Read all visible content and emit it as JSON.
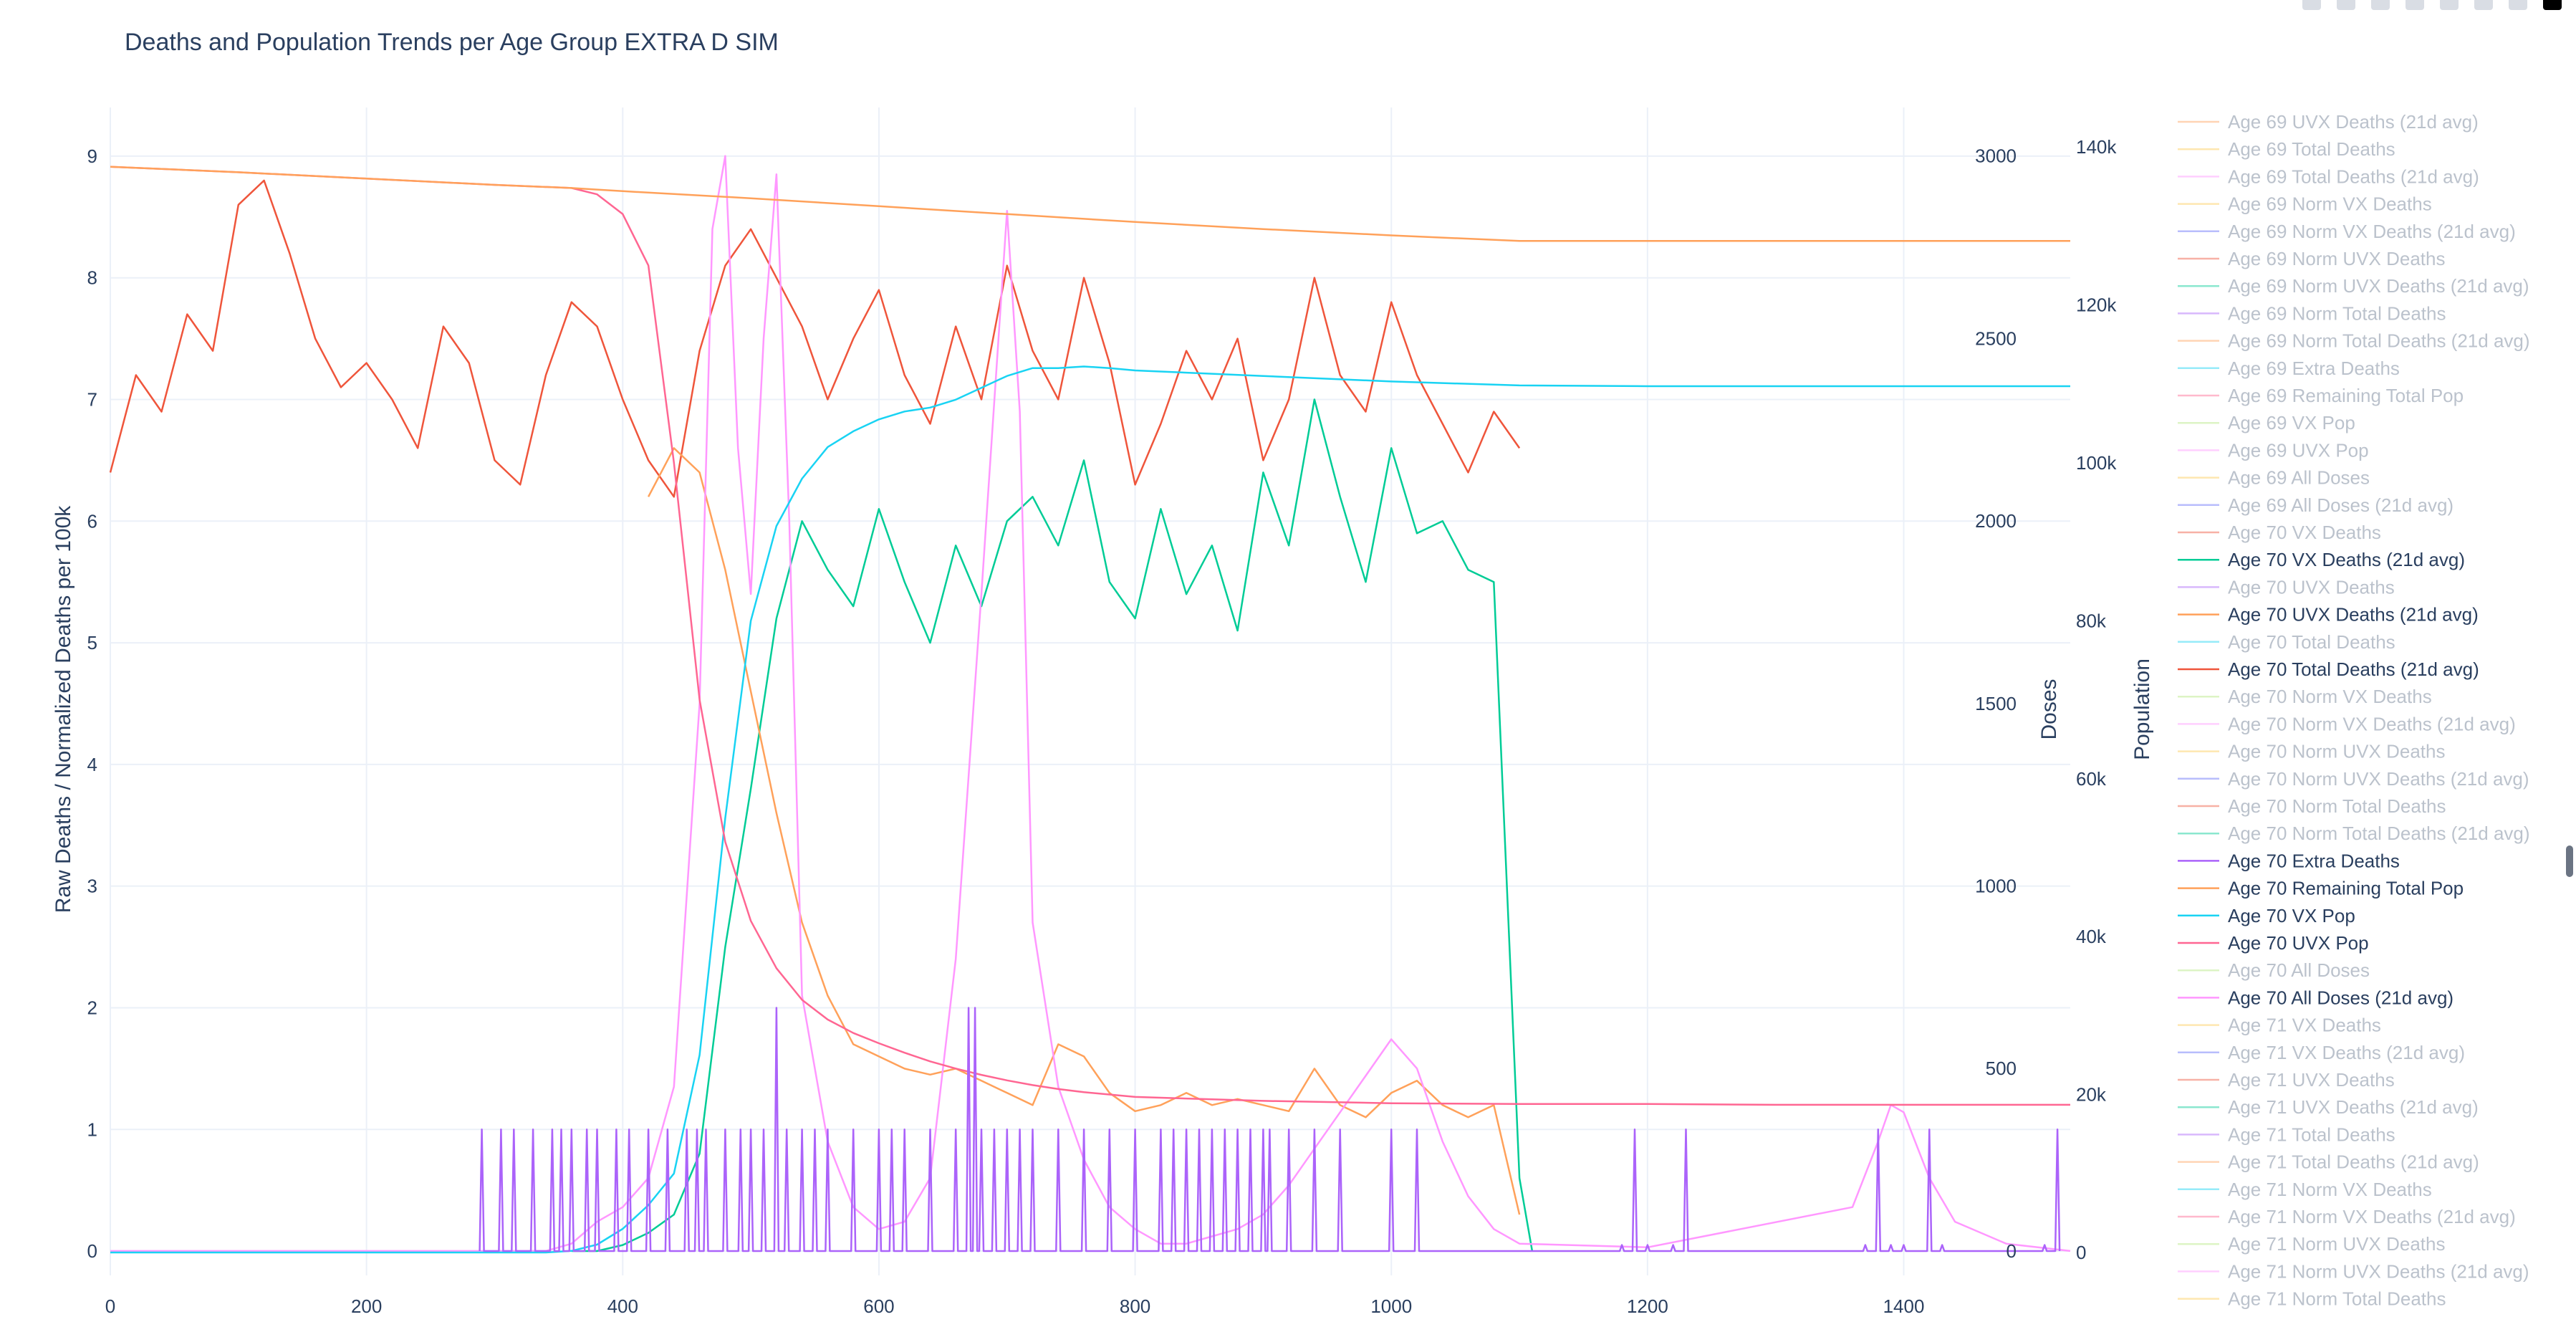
{
  "chart_data": {
    "type": "line",
    "title": "Deaths and Population Trends per Age Group  EXTRA D SIM",
    "xlim": [
      0,
      1530
    ],
    "x_ticks": [
      0,
      200,
      400,
      600,
      800,
      1000,
      1200,
      1400
    ],
    "axes": {
      "y": {
        "label": "Raw Deaths / Normalized Deaths per 100k",
        "range": [
          -0.2,
          9.4
        ],
        "ticks": [
          0,
          1,
          2,
          3,
          4,
          5,
          6,
          7,
          8,
          9
        ]
      },
      "y2": {
        "label": "Doses",
        "range": [
          -67,
          3133
        ],
        "ticks": [
          0,
          500,
          1000,
          1500,
          2000,
          2500,
          3000
        ]
      },
      "y3": {
        "label": "Population",
        "range": [
          -2900,
          145000
        ],
        "ticks": [
          0,
          20000,
          40000,
          60000,
          80000,
          100000,
          120000,
          140000
        ],
        "tick_labels": [
          "0",
          "20k",
          "40k",
          "60k",
          "80k",
          "100k",
          "120k",
          "140k"
        ]
      }
    },
    "grid": true,
    "legend_placement": "right",
    "series": [
      {
        "name": "Age 70 Total Deaths (21d avg)",
        "axis": "y",
        "color": "#ef553b",
        "x": [
          0,
          20,
          40,
          60,
          80,
          100,
          120,
          140,
          160,
          180,
          200,
          220,
          240,
          260,
          280,
          300,
          320,
          340,
          360,
          380,
          400,
          420,
          440,
          460,
          480,
          500,
          520,
          540,
          560,
          580,
          600,
          620,
          640,
          660,
          680,
          700,
          720,
          740,
          760,
          780,
          800,
          820,
          840,
          860,
          880,
          900,
          920,
          940,
          960,
          980,
          1000,
          1020,
          1040,
          1060,
          1080,
          1100
        ],
        "y": [
          6.4,
          7.2,
          6.9,
          7.7,
          7.4,
          8.6,
          8.8,
          8.2,
          7.5,
          7.1,
          7.3,
          7.0,
          6.6,
          7.6,
          7.3,
          6.5,
          6.3,
          7.2,
          7.8,
          7.6,
          7.0,
          6.5,
          6.2,
          7.4,
          8.1,
          8.4,
          8.0,
          7.6,
          7.0,
          7.5,
          7.9,
          7.2,
          6.8,
          7.6,
          7.0,
          8.1,
          7.4,
          7.0,
          8.0,
          7.3,
          6.3,
          6.8,
          7.4,
          7.0,
          7.5,
          6.5,
          7.0,
          8.0,
          7.2,
          6.9,
          7.8,
          7.2,
          6.8,
          6.4,
          6.9,
          6.6
        ]
      },
      {
        "name": "Age 70 VX Deaths (21d avg)",
        "axis": "y",
        "color": "#00cc96",
        "x": [
          360,
          380,
          400,
          420,
          440,
          460,
          480,
          500,
          520,
          540,
          560,
          580,
          600,
          620,
          640,
          660,
          680,
          700,
          720,
          740,
          760,
          780,
          800,
          820,
          840,
          860,
          880,
          900,
          920,
          940,
          960,
          980,
          1000,
          1020,
          1040,
          1060,
          1080,
          1100,
          1110
        ],
        "y": [
          0,
          0,
          0.05,
          0.15,
          0.3,
          0.8,
          2.5,
          3.8,
          5.2,
          6.0,
          5.6,
          5.3,
          6.1,
          5.5,
          5.0,
          5.8,
          5.3,
          6.0,
          6.2,
          5.8,
          6.5,
          5.5,
          5.2,
          6.1,
          5.4,
          5.8,
          5.1,
          6.4,
          5.8,
          7.0,
          6.2,
          5.5,
          6.6,
          5.9,
          6.0,
          5.6,
          5.5,
          0.6,
          0
        ]
      },
      {
        "name": "Age 70 UVX Deaths (21d avg)",
        "axis": "y",
        "color": "#ffa15a",
        "x": [
          420,
          440,
          460,
          480,
          500,
          520,
          540,
          560,
          580,
          600,
          620,
          640,
          660,
          680,
          700,
          720,
          740,
          760,
          780,
          800,
          820,
          840,
          860,
          880,
          900,
          920,
          940,
          960,
          980,
          1000,
          1020,
          1040,
          1060,
          1080,
          1100
        ],
        "y": [
          6.2,
          6.6,
          6.4,
          5.6,
          4.6,
          3.6,
          2.7,
          2.1,
          1.7,
          1.6,
          1.5,
          1.45,
          1.5,
          1.4,
          1.3,
          1.2,
          1.7,
          1.6,
          1.3,
          1.15,
          1.2,
          1.3,
          1.2,
          1.25,
          1.2,
          1.15,
          1.5,
          1.2,
          1.1,
          1.3,
          1.4,
          1.2,
          1.1,
          1.2,
          0.3
        ]
      },
      {
        "name": "Age 70 All Doses (21d avg)",
        "axis": "y2",
        "color": "#ff97ff",
        "x": [
          0,
          340,
          360,
          380,
          400,
          420,
          440,
          460,
          470,
          480,
          490,
          500,
          510,
          520,
          530,
          540,
          560,
          580,
          600,
          620,
          640,
          660,
          680,
          700,
          710,
          720,
          740,
          760,
          780,
          800,
          820,
          840,
          860,
          880,
          900,
          920,
          940,
          960,
          980,
          1000,
          1020,
          1040,
          1060,
          1080,
          1100,
          1200,
          1360,
          1380,
          1390,
          1400,
          1420,
          1440,
          1480,
          1530
        ],
        "y": [
          0,
          0,
          20,
          80,
          120,
          200,
          450,
          1500,
          2800,
          3000,
          2200,
          1800,
          2500,
          2950,
          2000,
          700,
          300,
          120,
          60,
          80,
          200,
          800,
          1800,
          2850,
          2300,
          900,
          450,
          250,
          120,
          60,
          20,
          20,
          40,
          60,
          100,
          180,
          280,
          380,
          480,
          580,
          500,
          300,
          150,
          60,
          20,
          10,
          120,
          300,
          400,
          380,
          200,
          80,
          20,
          0
        ]
      },
      {
        "name": "Age 70 VX Pop",
        "axis": "y3",
        "color": "#19d3f3",
        "x": [
          0,
          340,
          360,
          380,
          400,
          420,
          440,
          460,
          480,
          500,
          520,
          540,
          560,
          580,
          600,
          620,
          640,
          660,
          680,
          700,
          720,
          740,
          760,
          780,
          800,
          900,
          1000,
          1100,
          1200,
          1300,
          1400,
          1530
        ],
        "y": [
          0,
          0,
          200,
          1000,
          3000,
          6000,
          10000,
          25000,
          55000,
          80000,
          92000,
          98000,
          102000,
          104000,
          105500,
          106500,
          107000,
          108000,
          109500,
          111000,
          112000,
          112000,
          112200,
          112000,
          111700,
          111000,
          110300,
          109800,
          109700,
          109700,
          109700,
          109700
        ]
      },
      {
        "name": "Age 70 UVX Pop",
        "axis": "y3",
        "color": "#ff6692",
        "x": [
          0,
          100,
          200,
          300,
          360,
          380,
          400,
          420,
          440,
          460,
          480,
          500,
          520,
          540,
          560,
          580,
          600,
          620,
          640,
          660,
          680,
          700,
          720,
          740,
          760,
          800,
          900,
          1000,
          1100,
          1200,
          1300,
          1400,
          1530
        ],
        "y": [
          137500,
          136800,
          136000,
          135200,
          134800,
          134000,
          131500,
          125000,
          100000,
          70000,
          52000,
          42000,
          36000,
          32000,
          29500,
          27800,
          26500,
          25300,
          24200,
          23300,
          22500,
          21800,
          21200,
          20700,
          20300,
          19700,
          19200,
          18900,
          18800,
          18800,
          18700,
          18700,
          18700
        ]
      },
      {
        "name": "Age 70 Remaining Total Pop",
        "axis": "y3",
        "color": "#ffa15a",
        "x": [
          0,
          100,
          200,
          300,
          360,
          380,
          400,
          500,
          600,
          700,
          800,
          900,
          1000,
          1100,
          1200,
          1300,
          1400,
          1530
        ],
        "y": [
          137500,
          136800,
          136000,
          135200,
          134800,
          134600,
          134400,
          133500,
          132500,
          131500,
          130500,
          129600,
          128800,
          128100,
          128100,
          128100,
          128100,
          128100
        ]
      },
      {
        "name": "Age 70 Extra Deaths",
        "axis": "y",
        "color": "#ab63fa",
        "x": [
          290,
          305,
          315,
          330,
          345,
          352,
          360,
          372,
          380,
          395,
          405,
          420,
          435,
          450,
          458,
          465,
          480,
          492,
          500,
          510,
          520,
          528,
          540,
          550,
          560,
          580,
          600,
          610,
          620,
          640,
          660,
          670,
          675,
          680,
          690,
          700,
          710,
          720,
          740,
          760,
          780,
          800,
          820,
          830,
          840,
          850,
          860,
          870,
          880,
          890,
          900,
          905,
          920,
          940,
          960,
          1000,
          1020,
          1180,
          1190,
          1200,
          1220,
          1230,
          1370,
          1380,
          1390,
          1400,
          1420,
          1430,
          1510,
          1520
        ],
        "y": [
          1,
          1,
          1,
          1,
          1,
          1,
          1,
          1,
          1,
          1,
          1,
          1,
          1,
          1,
          1,
          1,
          1,
          1,
          1,
          1,
          2,
          1,
          1,
          1,
          1,
          1,
          1,
          1,
          1,
          1,
          1,
          2,
          2,
          1,
          1,
          1,
          1,
          1,
          1,
          1,
          1,
          1,
          1,
          1,
          1,
          1,
          1,
          1,
          1,
          1,
          1,
          1,
          1,
          1,
          1,
          1,
          1,
          0.05,
          1,
          0.05,
          0.05,
          1,
          0.05,
          1,
          0.05,
          0.05,
          1,
          0.05,
          0.05,
          1
        ]
      }
    ],
    "legend_entries": [
      {
        "label": "Age 69 UVX Deaths (21d avg)",
        "color": "#ffa15a",
        "active": false
      },
      {
        "label": "Age 69 Total Deaths",
        "color": "#fecb52",
        "active": false
      },
      {
        "label": "Age 69 Total Deaths (21d avg)",
        "color": "#ff97ff",
        "active": false
      },
      {
        "label": "Age 69 Norm VX Deaths",
        "color": "#fecb52",
        "active": false
      },
      {
        "label": "Age 69 Norm VX Deaths (21d avg)",
        "color": "#636efa",
        "active": false
      },
      {
        "label": "Age 69 Norm UVX Deaths",
        "color": "#ef553b",
        "active": false
      },
      {
        "label": "Age 69 Norm UVX Deaths (21d avg)",
        "color": "#00cc96",
        "active": false
      },
      {
        "label": "Age 69 Norm Total Deaths",
        "color": "#ab63fa",
        "active": false
      },
      {
        "label": "Age 69 Norm Total Deaths (21d avg)",
        "color": "#ffa15a",
        "active": false
      },
      {
        "label": "Age 69 Extra Deaths",
        "color": "#19d3f3",
        "active": false
      },
      {
        "label": "Age 69 Remaining Total Pop",
        "color": "#ff6692",
        "active": false
      },
      {
        "label": "Age 69 VX Pop",
        "color": "#b6e880",
        "active": false
      },
      {
        "label": "Age 69 UVX Pop",
        "color": "#ff97ff",
        "active": false
      },
      {
        "label": "Age 69 All Doses",
        "color": "#fecb52",
        "active": false
      },
      {
        "label": "Age 69 All Doses (21d avg)",
        "color": "#636efa",
        "active": false
      },
      {
        "label": "Age 70 VX Deaths",
        "color": "#ef553b",
        "active": false
      },
      {
        "label": "Age 70 VX Deaths (21d avg)",
        "color": "#00cc96",
        "active": true
      },
      {
        "label": "Age 70 UVX Deaths",
        "color": "#ab63fa",
        "active": false
      },
      {
        "label": "Age 70 UVX Deaths (21d avg)",
        "color": "#ffa15a",
        "active": true
      },
      {
        "label": "Age 70 Total Deaths",
        "color": "#19d3f3",
        "active": false
      },
      {
        "label": "Age 70 Total Deaths (21d avg)",
        "color": "#ef553b",
        "active": true
      },
      {
        "label": "Age 70 Norm VX Deaths",
        "color": "#b6e880",
        "active": false
      },
      {
        "label": "Age 70 Norm VX Deaths (21d avg)",
        "color": "#ff97ff",
        "active": false
      },
      {
        "label": "Age 70 Norm UVX Deaths",
        "color": "#fecb52",
        "active": false
      },
      {
        "label": "Age 70 Norm UVX Deaths (21d avg)",
        "color": "#636efa",
        "active": false
      },
      {
        "label": "Age 70 Norm Total Deaths",
        "color": "#ef553b",
        "active": false
      },
      {
        "label": "Age 70 Norm Total Deaths (21d avg)",
        "color": "#00cc96",
        "active": false
      },
      {
        "label": "Age 70 Extra Deaths",
        "color": "#ab63fa",
        "active": true
      },
      {
        "label": "Age 70 Remaining Total Pop",
        "color": "#ffa15a",
        "active": true
      },
      {
        "label": "Age 70 VX Pop",
        "color": "#19d3f3",
        "active": true
      },
      {
        "label": "Age 70 UVX Pop",
        "color": "#ff6692",
        "active": true
      },
      {
        "label": "Age 70 All Doses",
        "color": "#b6e880",
        "active": false
      },
      {
        "label": "Age 70 All Doses (21d avg)",
        "color": "#ff97ff",
        "active": true
      },
      {
        "label": "Age 71 VX Deaths",
        "color": "#fecb52",
        "active": false
      },
      {
        "label": "Age 71 VX Deaths (21d avg)",
        "color": "#636efa",
        "active": false
      },
      {
        "label": "Age 71 UVX Deaths",
        "color": "#ef553b",
        "active": false
      },
      {
        "label": "Age 71 UVX Deaths (21d avg)",
        "color": "#00cc96",
        "active": false
      },
      {
        "label": "Age 71 Total Deaths",
        "color": "#ab63fa",
        "active": false
      },
      {
        "label": "Age 71 Total Deaths (21d avg)",
        "color": "#ffa15a",
        "active": false
      },
      {
        "label": "Age 71 Norm VX Deaths",
        "color": "#19d3f3",
        "active": false
      },
      {
        "label": "Age 71 Norm VX Deaths (21d avg)",
        "color": "#ff6692",
        "active": false
      },
      {
        "label": "Age 71 Norm UVX Deaths",
        "color": "#b6e880",
        "active": false
      },
      {
        "label": "Age 71 Norm UVX Deaths (21d avg)",
        "color": "#ff97ff",
        "active": false
      },
      {
        "label": "Age 71 Norm Total Deaths",
        "color": "#fecb52",
        "active": false
      }
    ]
  }
}
